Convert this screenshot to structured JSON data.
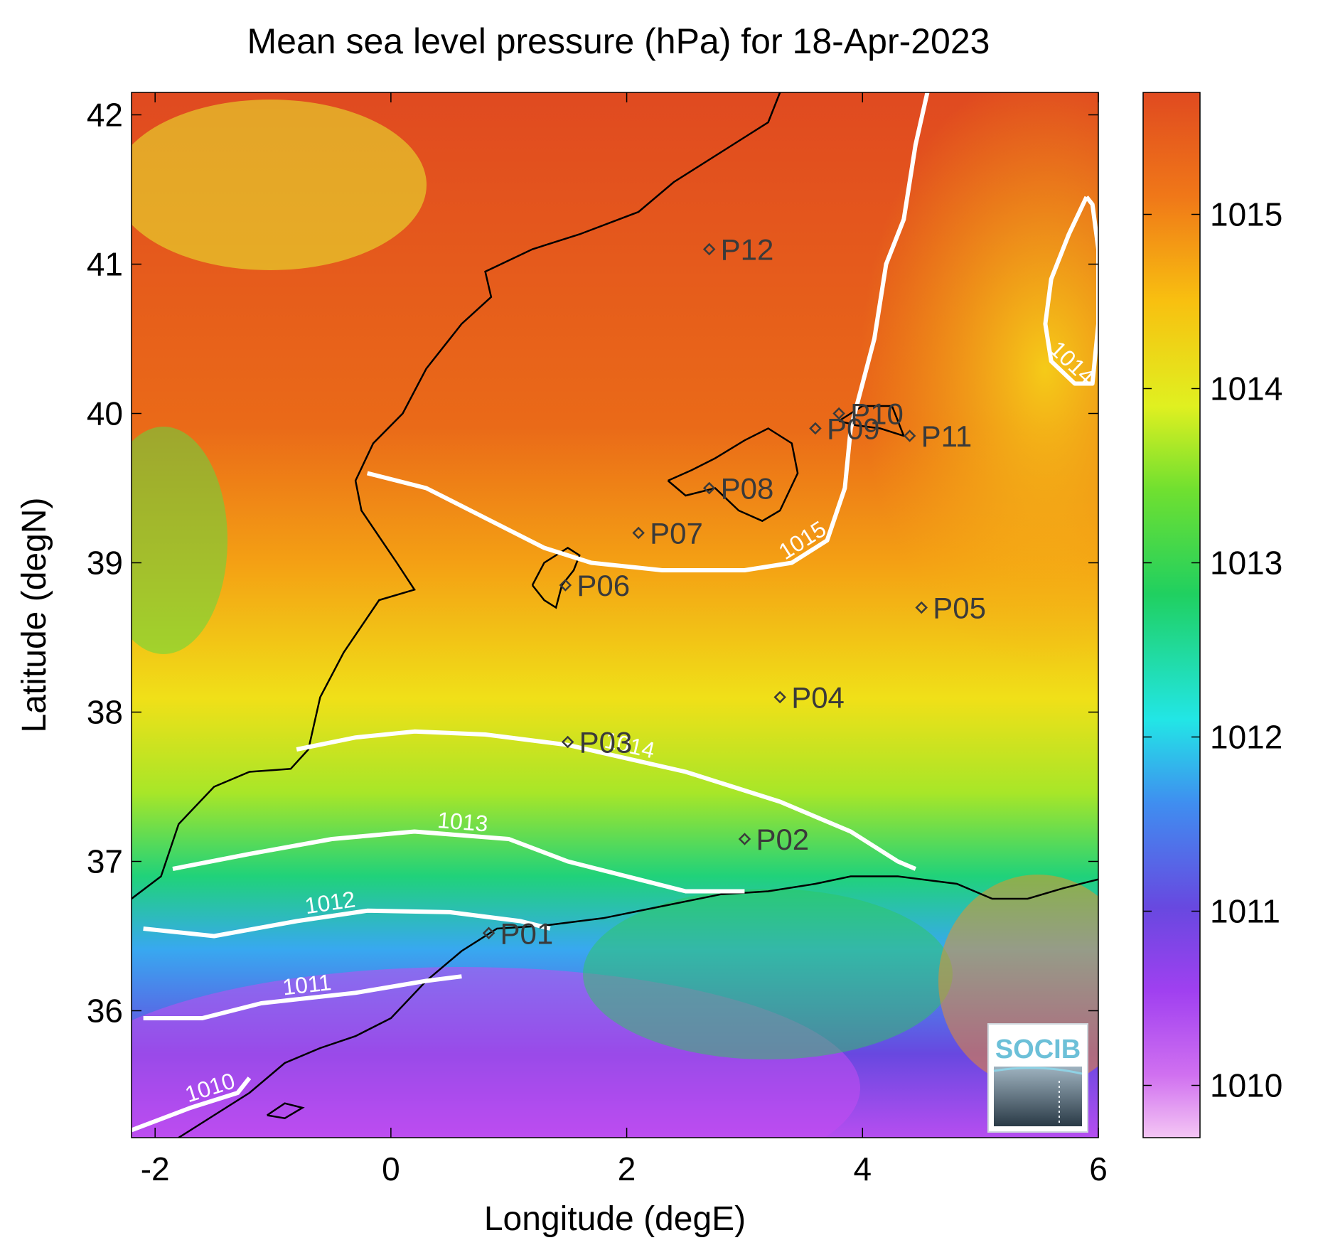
{
  "title": "Mean sea level pressure (hPa) for 18-Apr-2023",
  "xlabel": "Longitude (degE)",
  "ylabel": "Latitude (degN)",
  "x_ticks": [
    "-2",
    "0",
    "2",
    "4",
    "6"
  ],
  "y_ticks": [
    "42",
    "41",
    "40",
    "39",
    "38",
    "37",
    "36"
  ],
  "colorbar": {
    "ticks": [
      "1015",
      "1014",
      "1013",
      "1012",
      "1011",
      "1010"
    ],
    "range": [
      1009.7,
      1015.7
    ],
    "colormap": [
      "#f4c6f4",
      "#c040f0",
      "#6848e0",
      "#3f8ef0",
      "#22e6e6",
      "#20d060",
      "#70e030",
      "#e0f020",
      "#f8c010",
      "#f07818",
      "#e04a20"
    ]
  },
  "logo": {
    "text": "SOCIB"
  },
  "chart_data": {
    "type": "heatmap",
    "variable": "Mean sea level pressure (hPa)",
    "date": "18-Apr-2023",
    "xlim": [
      -2.2,
      6
    ],
    "ylim": [
      35.15,
      42.15
    ],
    "contours": [
      {
        "level": 1015,
        "label": "1015",
        "points": [
          [
            -0.2,
            39.6
          ],
          [
            0.3,
            39.5
          ],
          [
            0.8,
            39.3
          ],
          [
            1.3,
            39.1
          ],
          [
            1.7,
            39.0
          ],
          [
            2.3,
            38.95
          ],
          [
            3.0,
            38.95
          ],
          [
            3.4,
            39.0
          ],
          [
            3.7,
            39.15
          ],
          [
            3.85,
            39.5
          ],
          [
            3.9,
            39.9
          ],
          [
            4.0,
            40.2
          ],
          [
            4.1,
            40.5
          ],
          [
            4.2,
            41.0
          ],
          [
            4.35,
            41.3
          ],
          [
            4.45,
            41.8
          ],
          [
            4.55,
            42.15
          ]
        ]
      },
      {
        "level": 1014,
        "label": "1014",
        "points": [
          [
            -0.8,
            37.75
          ],
          [
            -0.3,
            37.83
          ],
          [
            0.2,
            37.87
          ],
          [
            0.8,
            37.85
          ],
          [
            1.5,
            37.78
          ],
          [
            2.5,
            37.6
          ],
          [
            3.3,
            37.4
          ],
          [
            3.9,
            37.2
          ],
          [
            4.3,
            37.0
          ],
          [
            4.45,
            36.95
          ]
        ]
      },
      {
        "level": 1014,
        "label": "1014",
        "points": [
          [
            5.9,
            41.45
          ],
          [
            5.75,
            41.2
          ],
          [
            5.6,
            40.9
          ],
          [
            5.55,
            40.6
          ],
          [
            5.6,
            40.35
          ],
          [
            5.8,
            40.2
          ],
          [
            5.95,
            40.2
          ],
          [
            6.0,
            40.6
          ],
          [
            6.0,
            41.1
          ],
          [
            5.95,
            41.4
          ],
          [
            5.9,
            41.45
          ]
        ]
      },
      {
        "level": 1013,
        "label": "1013",
        "points": [
          [
            -1.85,
            36.95
          ],
          [
            -1.2,
            37.05
          ],
          [
            -0.5,
            37.15
          ],
          [
            0.2,
            37.2
          ],
          [
            1.0,
            37.15
          ],
          [
            1.5,
            37.0
          ],
          [
            2.0,
            36.9
          ],
          [
            2.5,
            36.8
          ],
          [
            3.0,
            36.8
          ]
        ]
      },
      {
        "level": 1012,
        "label": "1012",
        "points": [
          [
            -2.1,
            36.55
          ],
          [
            -1.5,
            36.5
          ],
          [
            -0.8,
            36.6
          ],
          [
            -0.2,
            36.67
          ],
          [
            0.5,
            36.66
          ],
          [
            1.1,
            36.6
          ],
          [
            1.35,
            36.55
          ]
        ]
      },
      {
        "level": 1011,
        "label": "1011",
        "points": [
          [
            -2.1,
            35.95
          ],
          [
            -1.6,
            35.95
          ],
          [
            -1.1,
            36.05
          ],
          [
            -0.3,
            36.12
          ],
          [
            0.3,
            36.2
          ],
          [
            0.6,
            36.23
          ]
        ]
      },
      {
        "level": 1010,
        "label": "1010",
        "points": [
          [
            -2.2,
            35.2
          ],
          [
            -1.7,
            35.35
          ],
          [
            -1.3,
            35.45
          ],
          [
            -1.2,
            35.55
          ]
        ]
      }
    ],
    "stations": [
      {
        "name": "P01",
        "lon": 0.83,
        "lat": 36.52
      },
      {
        "name": "P02",
        "lon": 3.0,
        "lat": 37.15
      },
      {
        "name": "P03",
        "lon": 1.5,
        "lat": 37.8
      },
      {
        "name": "P04",
        "lon": 3.3,
        "lat": 38.1
      },
      {
        "name": "P05",
        "lon": 4.5,
        "lat": 38.7
      },
      {
        "name": "P06",
        "lon": 1.48,
        "lat": 38.85
      },
      {
        "name": "P07",
        "lon": 2.1,
        "lat": 39.2
      },
      {
        "name": "P08",
        "lon": 2.7,
        "lat": 39.5
      },
      {
        "name": "P09",
        "lon": 3.6,
        "lat": 39.9
      },
      {
        "name": "P10",
        "lon": 3.8,
        "lat": 40.0
      },
      {
        "name": "P11",
        "lon": 4.4,
        "lat": 39.85
      },
      {
        "name": "P12",
        "lon": 2.7,
        "lat": 41.1
      }
    ]
  }
}
